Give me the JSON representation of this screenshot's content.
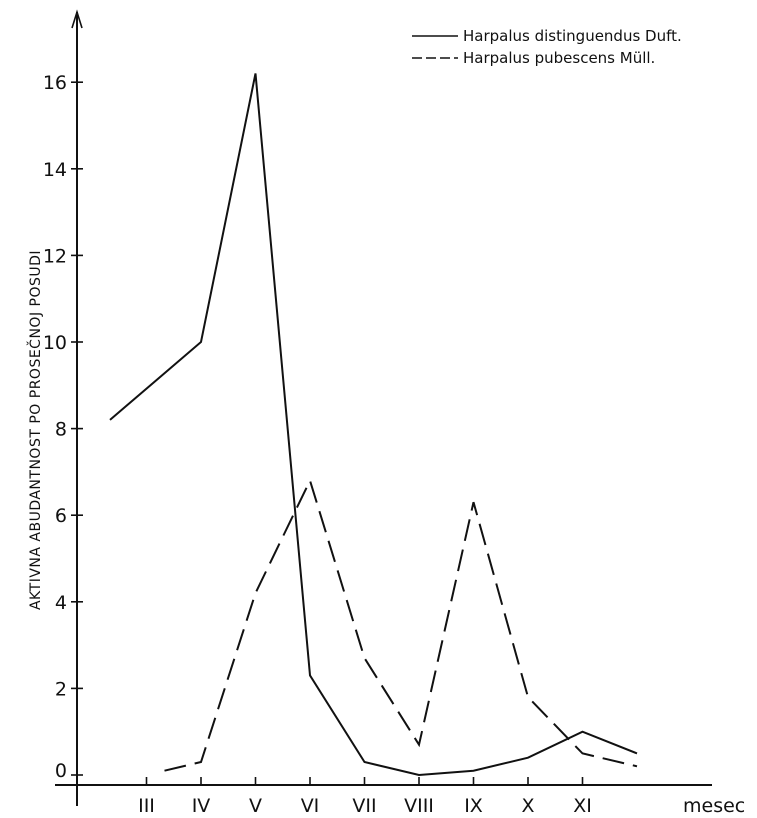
{
  "chart_data": {
    "type": "line",
    "ylabel": "AKTIVNA ABUDANTNOST PO PROSEČNOJ POSUDI",
    "xlabel": "mesec",
    "ylim": [
      0,
      17.5
    ],
    "yticks": [
      0,
      2,
      4,
      6,
      8,
      10,
      12,
      14,
      16
    ],
    "categories": [
      "III",
      "IV",
      "V",
      "VI",
      "VII",
      "VIII",
      "IX",
      "X",
      "XI"
    ],
    "legend_position": "top-right",
    "grid": false,
    "series": [
      {
        "name": "Harpalus distinguendus Duft.",
        "style": "solid",
        "x": [
          1.33,
          3,
          4,
          5,
          6,
          7,
          8,
          9,
          10,
          11
        ],
        "y": [
          8.2,
          10.0,
          16.2,
          2.3,
          0.3,
          0.0,
          0.1,
          0.4,
          1.0,
          0.5
        ]
      },
      {
        "name": "Harpalus pubescens Müll.",
        "style": "dashed",
        "x": [
          2.33,
          3,
          4,
          5,
          6,
          7,
          8,
          9,
          10,
          11
        ],
        "y": [
          0.1,
          0.3,
          4.2,
          6.8,
          2.7,
          0.7,
          6.3,
          1.8,
          0.5,
          0.2
        ]
      }
    ]
  }
}
